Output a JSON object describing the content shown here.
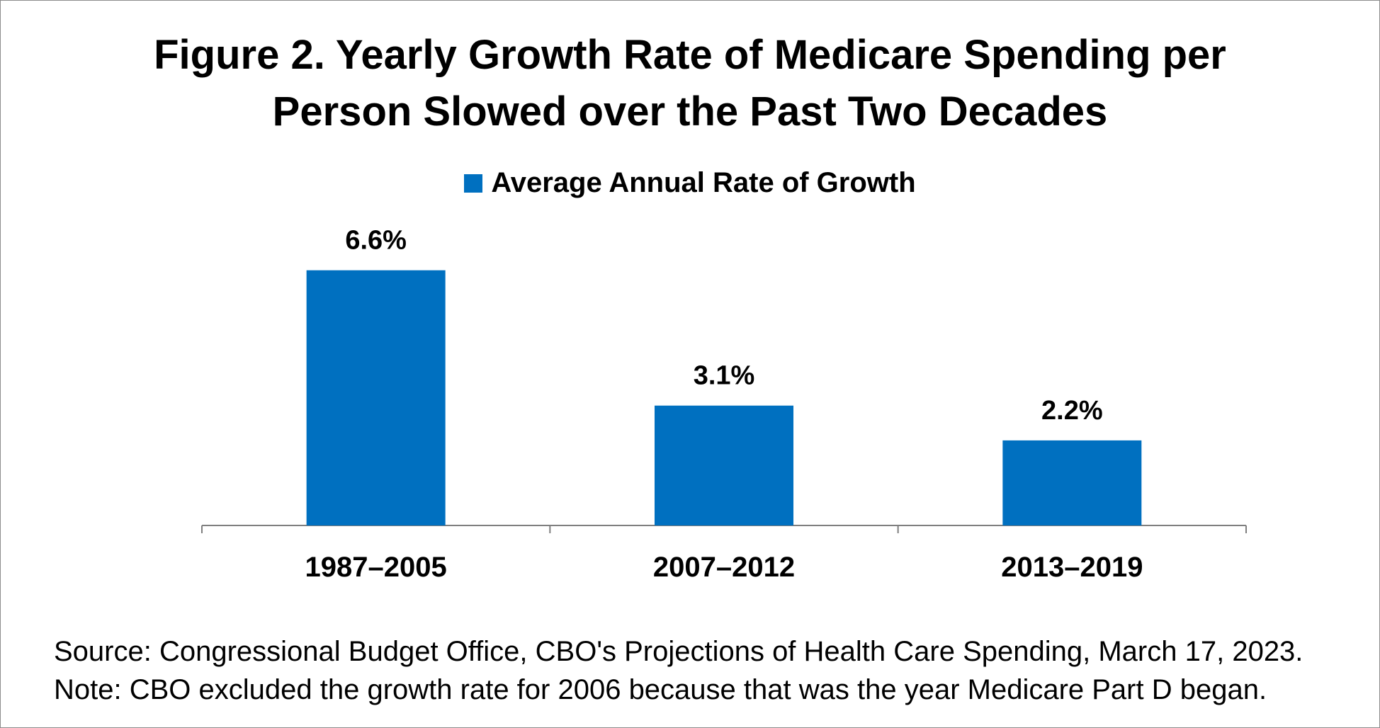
{
  "title_line1": "Figure 2. Yearly Growth Rate of Medicare Spending per",
  "title_line2": "Person Slowed over the Past Two Decades",
  "source": "Source: Congressional Budget Office, CBO's Projections of Health Care Spending, March 17, 2023.",
  "note": "Note: CBO excluded the growth rate for 2006 because that was the year Medicare Part D began.",
  "colors": {
    "bar": "#0070c0",
    "axis": "#7f7f7f"
  },
  "chart_data": {
    "type": "bar",
    "title": "Figure 2. Yearly Growth Rate of Medicare Spending per Person Slowed over the Past Two Decades",
    "categories": [
      "1987–2005",
      "2007–2012",
      "2013–2019"
    ],
    "series": [
      {
        "name": "Average Annual Rate of Growth",
        "values": [
          6.6,
          3.1,
          2.2
        ],
        "labels": [
          "6.6%",
          "3.1%",
          "2.2%"
        ]
      }
    ],
    "ylim": [
      0,
      7.5
    ],
    "grid": false,
    "legend": "top-center",
    "xlabel": "",
    "ylabel": ""
  }
}
